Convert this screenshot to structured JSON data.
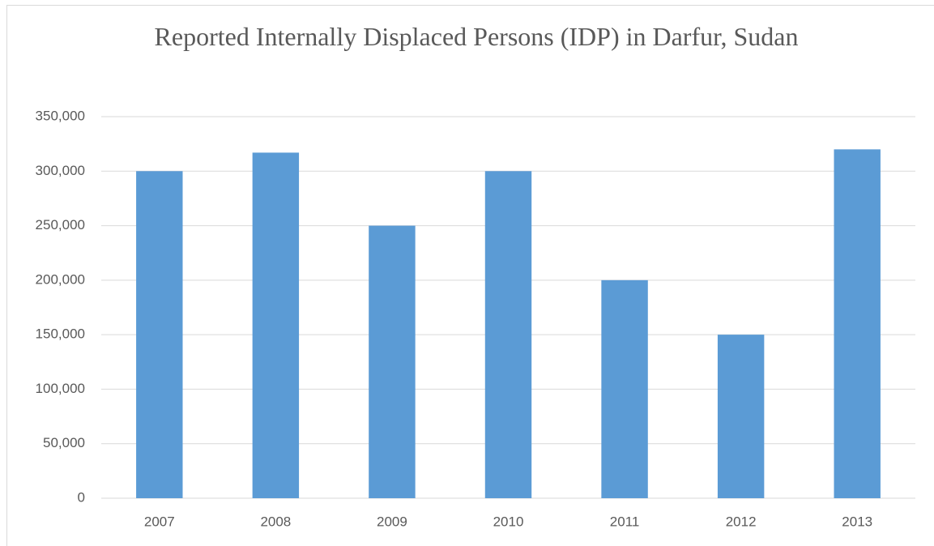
{
  "chart_data": {
    "type": "bar",
    "title": "Reported Internally Displaced Persons (IDP) in Darfur, Sudan",
    "categories": [
      "2007",
      "2008",
      "2009",
      "2010",
      "2011",
      "2012",
      "2013"
    ],
    "values": [
      300000,
      317000,
      250000,
      300000,
      200000,
      150000,
      320000
    ],
    "color": "#5b9bd5",
    "ylim": [
      0,
      350000
    ],
    "yticks": [
      0,
      {
        "value": 50000,
        "label": "50,000"
      },
      {
        "value": 100000,
        "label": "100,000"
      },
      {
        "value": 150000,
        "label": "150,000"
      },
      {
        "value": 200000,
        "label": "200,000"
      },
      {
        "value": 250000,
        "label": "250,000"
      },
      {
        "value": 300000,
        "label": "300,000"
      },
      {
        "value": 350000,
        "label": "350,000"
      }
    ],
    "grid": true
  }
}
